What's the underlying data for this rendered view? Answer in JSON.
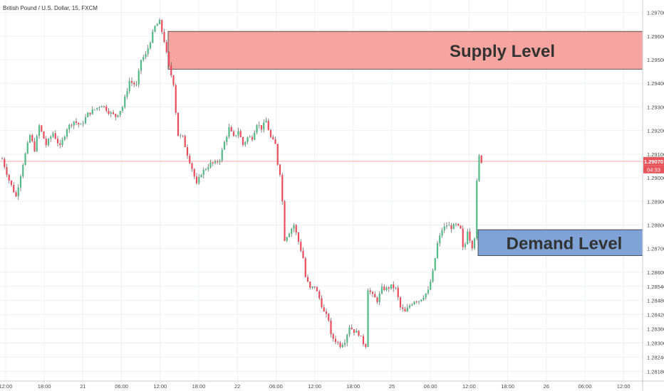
{
  "header": {
    "title": "British Pound / U.S. Dollar, 15, FXCM"
  },
  "colors": {
    "up": "#53b987",
    "down": "#eb4d5c",
    "wick": "#555555",
    "grid": "#eef0f3",
    "axis_text": "#4a4a4a",
    "supply_fill": "#f6a4a0",
    "supply_border": "#333333",
    "demand_fill": "#7fa3d6",
    "demand_border": "#333333",
    "price_line": "#f7a9a9",
    "price_badge": "#e8545c"
  },
  "chart_data": {
    "type": "candlestick",
    "title": "British Pound / U.S. Dollar, 15, FXCM",
    "ylim": [
      1.28175,
      1.29735
    ],
    "y_ticks": [
      "1.29700",
      "1.29600",
      "1.29500",
      "1.29400",
      "1.29300",
      "1.29200",
      "1.29100",
      "1.29000",
      "1.28900",
      "1.28800",
      "1.28700",
      "1.28600",
      "1.28540",
      "1.28480",
      "1.28420",
      "1.28360",
      "1.28300",
      "1.28240",
      "1.28180"
    ],
    "x_ticks": [
      "12:00",
      "18:00",
      "21",
      "06:00",
      "12:00",
      "18:00",
      "22",
      "06:00",
      "12:00",
      "18:00",
      "25",
      "06:00",
      "12:00",
      "18:00",
      "26",
      "06:00",
      "12:00"
    ],
    "current_price": "1.29070",
    "countdown": "04:33",
    "grid": true,
    "zones": [
      {
        "name": "supply",
        "label": "Supply Level",
        "top": 1.2962,
        "bottom": 1.2946
      },
      {
        "name": "demand",
        "label": "Demand Level",
        "top": 1.2878,
        "bottom": 1.2867
      }
    ],
    "price_path": [
      [
        0,
        1.2908
      ],
      [
        3,
        1.2899
      ],
      [
        6,
        1.2892
      ],
      [
        9,
        1.2906
      ],
      [
        12,
        1.2918
      ],
      [
        14,
        1.2912
      ],
      [
        16,
        1.2922
      ],
      [
        19,
        1.2914
      ],
      [
        22,
        1.2919
      ],
      [
        25,
        1.2913
      ],
      [
        28,
        1.2921
      ],
      [
        31,
        1.2924
      ],
      [
        34,
        1.2922
      ],
      [
        37,
        1.2927
      ],
      [
        40,
        1.2929
      ],
      [
        43,
        1.2931
      ],
      [
        46,
        1.2928
      ],
      [
        49,
        1.2926
      ],
      [
        52,
        1.293
      ],
      [
        55,
        1.2941
      ],
      [
        58,
        1.2939
      ],
      [
        60,
        1.295
      ],
      [
        62,
        1.2952
      ],
      [
        64,
        1.2958
      ],
      [
        66,
        1.2964
      ],
      [
        68,
        1.2966
      ],
      [
        70,
        1.2958
      ],
      [
        72,
        1.2947
      ],
      [
        74,
        1.294
      ],
      [
        75,
        1.2928
      ],
      [
        76,
        1.2918
      ],
      [
        78,
        1.2917
      ],
      [
        80,
        1.291
      ],
      [
        82,
        1.2904
      ],
      [
        84,
        1.2897
      ],
      [
        86,
        1.2902
      ],
      [
        88,
        1.2904
      ],
      [
        90,
        1.2906
      ],
      [
        92,
        1.2906
      ],
      [
        94,
        1.2908
      ],
      [
        96,
        1.2915
      ],
      [
        98,
        1.2921
      ],
      [
        100,
        1.2917
      ],
      [
        102,
        1.292
      ],
      [
        104,
        1.2914
      ],
      [
        106,
        1.2917
      ],
      [
        108,
        1.2917
      ],
      [
        110,
        1.2923
      ],
      [
        112,
        1.2921
      ],
      [
        114,
        1.2924
      ],
      [
        116,
        1.2917
      ],
      [
        118,
        1.2914
      ],
      [
        119,
        1.2906
      ],
      [
        120,
        1.2902
      ],
      [
        121,
        1.289
      ],
      [
        122,
        1.2874
      ],
      [
        124,
        1.2877
      ],
      [
        126,
        1.288
      ],
      [
        128,
        1.2873
      ],
      [
        130,
        1.2866
      ],
      [
        131,
        1.2858
      ],
      [
        133,
        1.2853
      ],
      [
        135,
        1.2854
      ],
      [
        137,
        1.2849
      ],
      [
        139,
        1.2843
      ],
      [
        141,
        1.284
      ],
      [
        142,
        1.2833
      ],
      [
        144,
        1.2831
      ],
      [
        146,
        1.2829
      ],
      [
        148,
        1.2831
      ],
      [
        150,
        1.2837
      ],
      [
        152,
        1.2835
      ],
      [
        154,
        1.2834
      ],
      [
        156,
        1.283
      ],
      [
        157,
        1.2829
      ],
      [
        158,
        1.2853
      ],
      [
        160,
        1.285
      ],
      [
        162,
        1.2848
      ],
      [
        164,
        1.2853
      ],
      [
        166,
        1.2853
      ],
      [
        168,
        1.2854
      ],
      [
        170,
        1.2853
      ],
      [
        172,
        1.2845
      ],
      [
        174,
        1.2843
      ],
      [
        176,
        1.2846
      ],
      [
        178,
        1.2848
      ],
      [
        180,
        1.2848
      ],
      [
        182,
        1.285
      ],
      [
        184,
        1.2852
      ],
      [
        186,
        1.286
      ],
      [
        188,
        1.2872
      ],
      [
        190,
        1.2878
      ],
      [
        192,
        1.288
      ],
      [
        194,
        1.2879
      ],
      [
        196,
        1.288
      ],
      [
        198,
        1.2878
      ],
      [
        199,
        1.287
      ],
      [
        200,
        1.2872
      ],
      [
        201,
        1.2878
      ],
      [
        202,
        1.2874
      ],
      [
        203,
        1.2871
      ],
      [
        204,
        1.2875
      ],
      [
        205,
        1.2898
      ],
      [
        206,
        1.2909
      ],
      [
        207,
        1.2907
      ]
    ]
  }
}
